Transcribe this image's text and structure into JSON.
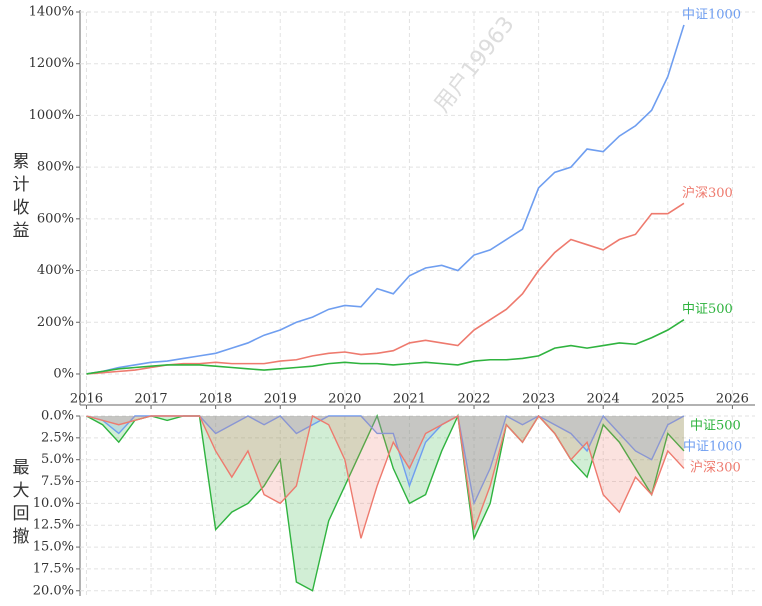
{
  "chart_data": [
    {
      "type": "line",
      "y_label": "累计收益",
      "watermark": "用户19963",
      "x": [
        2016,
        2016.25,
        2016.5,
        2016.75,
        2017,
        2017.25,
        2017.5,
        2017.75,
        2018,
        2018.25,
        2018.5,
        2018.75,
        2019,
        2019.25,
        2019.5,
        2019.75,
        2020,
        2020.25,
        2020.5,
        2020.75,
        2021,
        2021.25,
        2021.5,
        2021.75,
        2022,
        2022.25,
        2022.5,
        2022.75,
        2023,
        2023.25,
        2023.5,
        2023.75,
        2024,
        2024.25,
        2024.5,
        2024.75,
        2025,
        2025.25
      ],
      "series": [
        {
          "name": "中证1000",
          "color": "#6f9ef0",
          "values": [
            0,
            10,
            25,
            35,
            45,
            50,
            60,
            70,
            80,
            100,
            120,
            150,
            170,
            200,
            220,
            250,
            265,
            260,
            330,
            310,
            380,
            410,
            420,
            400,
            460,
            480,
            520,
            560,
            720,
            780,
            800,
            870,
            860,
            920,
            960,
            1020,
            1150,
            1350
          ]
        },
        {
          "name": "沪深300",
          "color": "#ee7a6e",
          "values": [
            0,
            5,
            10,
            15,
            25,
            35,
            40,
            40,
            45,
            40,
            40,
            40,
            50,
            55,
            70,
            80,
            85,
            75,
            80,
            90,
            120,
            130,
            120,
            110,
            170,
            210,
            250,
            310,
            400,
            470,
            520,
            500,
            480,
            520,
            540,
            620,
            620,
            660
          ]
        },
        {
          "name": "中证500",
          "color": "#2fb33f",
          "values": [
            0,
            10,
            20,
            25,
            30,
            35,
            35,
            35,
            30,
            25,
            20,
            15,
            20,
            25,
            30,
            40,
            45,
            40,
            40,
            35,
            40,
            45,
            40,
            35,
            50,
            55,
            55,
            60,
            70,
            100,
            110,
            100,
            110,
            120,
            115,
            140,
            170,
            210
          ]
        }
      ],
      "xlim": [
        2015.9,
        2026.35
      ],
      "xticks": [
        2016,
        2017,
        2018,
        2019,
        2020,
        2021,
        2022,
        2023,
        2024,
        2025,
        2026
      ],
      "ylim": [
        -120,
        1400
      ],
      "yticks": [
        {
          "value": 0,
          "label": "0%"
        },
        {
          "value": 200,
          "label": "200%"
        },
        {
          "value": 400,
          "label": "400%"
        },
        {
          "value": 600,
          "label": "600%"
        },
        {
          "value": 800,
          "label": "800%"
        },
        {
          "value": 1000,
          "label": "1000%"
        },
        {
          "value": 1200,
          "label": "1200%"
        },
        {
          "value": 1400,
          "label": "1400%"
        }
      ],
      "grid": true
    },
    {
      "type": "area",
      "y_label": "最大回撤",
      "inverted": true,
      "x": [
        2016,
        2016.25,
        2016.5,
        2016.75,
        2017,
        2017.25,
        2017.5,
        2017.75,
        2018,
        2018.25,
        2018.5,
        2018.75,
        2019,
        2019.25,
        2019.5,
        2019.75,
        2020,
        2020.25,
        2020.5,
        2020.75,
        2021,
        2021.25,
        2021.5,
        2021.75,
        2022,
        2022.25,
        2022.5,
        2022.75,
        2023,
        2023.25,
        2023.5,
        2023.75,
        2024,
        2024.25,
        2024.5,
        2024.75,
        2025,
        2025.25
      ],
      "series": [
        {
          "name": "中证500",
          "color": "#2fb33f",
          "values": [
            0,
            1,
            3,
            0.5,
            0,
            0.5,
            0,
            0,
            13,
            11,
            10,
            8,
            5,
            19,
            20,
            12,
            8,
            4,
            0,
            6,
            10,
            9,
            4,
            0,
            14,
            10,
            1,
            3,
            0,
            2,
            5,
            7,
            1,
            3,
            6,
            9,
            2,
            4
          ]
        },
        {
          "name": "中证1000",
          "color": "#6f9ef0",
          "values": [
            0,
            0.5,
            2,
            0,
            0,
            0,
            0,
            0,
            2,
            1,
            0,
            1,
            0,
            2,
            1,
            0,
            0,
            0,
            2,
            2,
            8,
            3,
            1,
            0,
            10,
            6,
            0,
            1,
            0,
            1,
            2,
            4,
            0,
            2,
            4,
            5,
            1,
            0
          ]
        },
        {
          "name": "沪深300",
          "color": "#ee7a6e",
          "values": [
            0,
            0.5,
            1,
            0.5,
            0,
            0,
            0,
            0,
            4,
            7,
            4,
            9,
            10,
            8,
            0,
            1,
            5,
            14,
            8,
            3,
            6,
            2,
            1,
            0,
            13,
            8,
            1,
            3,
            0,
            2,
            5,
            3,
            9,
            11,
            7,
            9,
            4,
            6
          ]
        }
      ],
      "ylim": [
        0,
        20.6
      ],
      "yticks": [
        {
          "value": 0,
          "label": "0.0%"
        },
        {
          "value": 2.5,
          "label": "2.5%"
        },
        {
          "value": 5,
          "label": "5.0%"
        },
        {
          "value": 7.5,
          "label": "7.5%"
        },
        {
          "value": 10,
          "label": "10.0%"
        },
        {
          "value": 12.5,
          "label": "12.5%"
        },
        {
          "value": 15,
          "label": "15.0%"
        },
        {
          "value": 17.5,
          "label": "17.5%"
        },
        {
          "value": 20,
          "label": "20.0%"
        }
      ],
      "grid": true
    }
  ]
}
